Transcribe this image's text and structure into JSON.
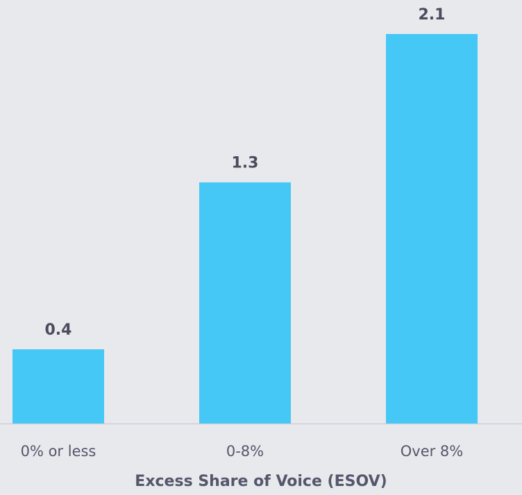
{
  "chart_data": {
    "type": "bar",
    "x_label": "Excess Share of Voice (ESOV)",
    "categories": [
      "0% or less",
      "0-8%",
      "Over 8%"
    ],
    "values": [
      0.4,
      1.3,
      2.1
    ],
    "color": "#45c8f5"
  }
}
